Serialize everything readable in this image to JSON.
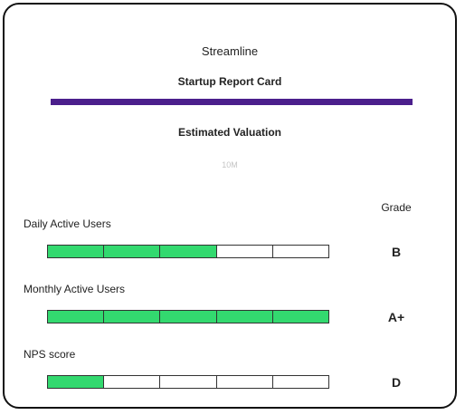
{
  "company": "Streamline",
  "report_title": "Startup Report Card",
  "valuation": {
    "label": "Estimated Valuation",
    "value": "10M"
  },
  "grade_header": "Grade",
  "colors": {
    "accent": "#4b1f8c",
    "bar_fill": "#33d96f",
    "bar_empty": "#ffffff"
  },
  "metrics": [
    {
      "label": "Daily Active Users",
      "filled_segments": 3,
      "total_segments": 5,
      "grade": "B"
    },
    {
      "label": "Monthly Active Users",
      "filled_segments": 5,
      "total_segments": 5,
      "grade": "A+"
    },
    {
      "label": "NPS score",
      "filled_segments": 1,
      "total_segments": 5,
      "grade": "D"
    }
  ]
}
